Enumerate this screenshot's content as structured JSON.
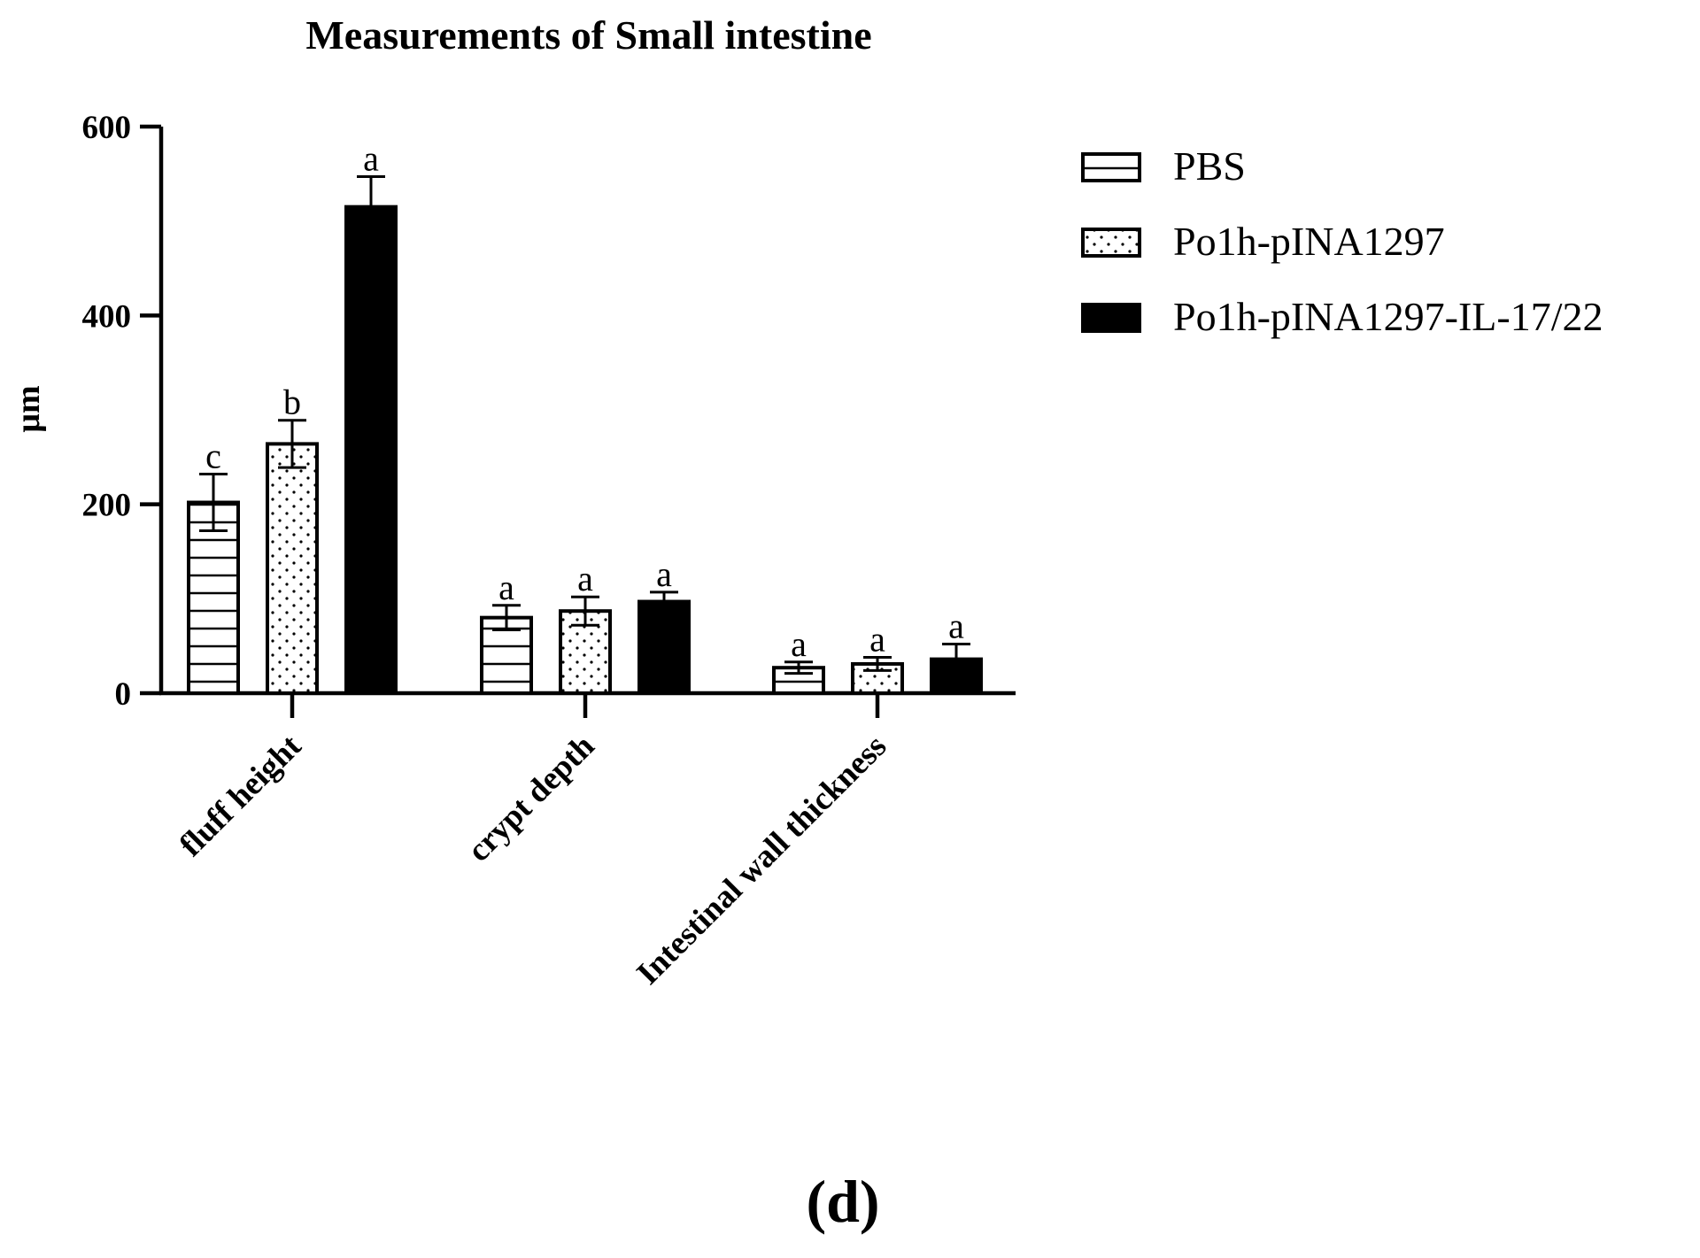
{
  "chart_data": {
    "type": "bar",
    "title": "Measurements of Small intestine",
    "xlabel": "",
    "ylabel": "μm",
    "ylim": [
      0,
      600
    ],
    "yticks": [
      0,
      200,
      400,
      600
    ],
    "ytick_labels": [
      "0",
      "200",
      "400",
      "600"
    ],
    "grid": false,
    "legend_position": "right",
    "categories": [
      "fluff height",
      "crypt depth",
      "Intestinal wall thickness"
    ],
    "series": [
      {
        "name": "PBS",
        "pattern": "horizontal-lines",
        "values": [
          202,
          80,
          27
        ],
        "errors": [
          30,
          13,
          6
        ],
        "significance": [
          "c",
          "a",
          "a"
        ]
      },
      {
        "name": "Po1h-pINA1297",
        "pattern": "dots",
        "values": [
          264,
          87,
          31
        ],
        "errors": [
          25,
          15,
          7
        ],
        "significance": [
          "b",
          "a",
          "a"
        ]
      },
      {
        "name": "Po1h-pINA1297-IL-17/22",
        "pattern": "solid",
        "values": [
          515,
          97,
          36
        ],
        "errors": [
          32,
          10,
          16
        ],
        "significance": [
          "a",
          "a",
          "a"
        ]
      }
    ],
    "colors": {
      "bar_stroke": "#000000",
      "solid_fill": "#000000",
      "pattern_fill": "#ffffff"
    }
  },
  "panel_label": "(d)"
}
